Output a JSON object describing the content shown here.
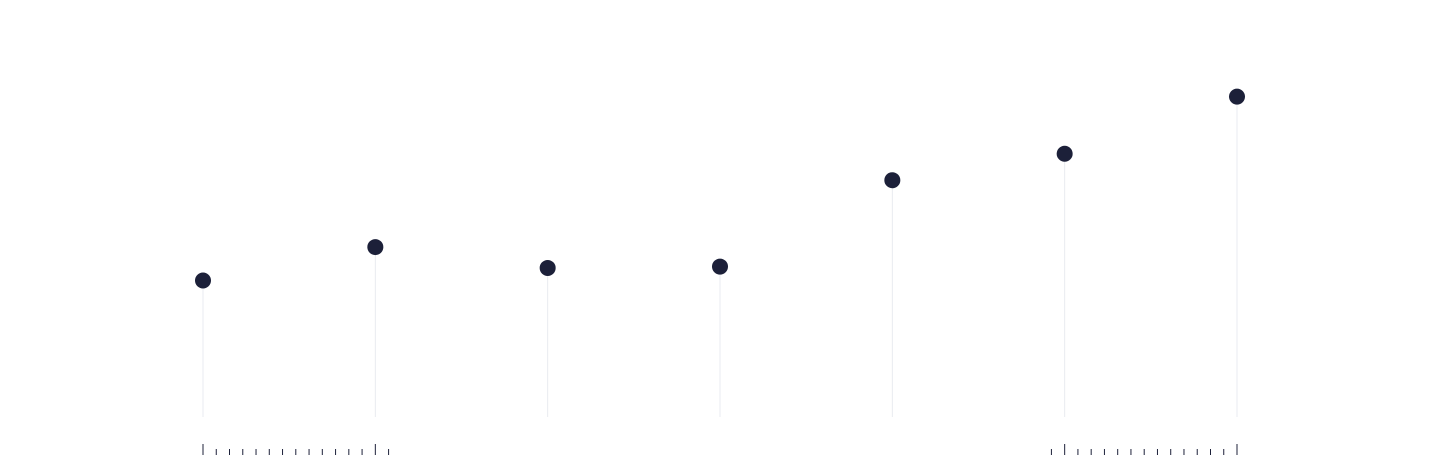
{
  "chart_data": {
    "type": "scatter",
    "style": "lollipop",
    "x": [
      1,
      2,
      3,
      4,
      5,
      6,
      7
    ],
    "values": [
      4.9,
      6.1,
      5.35,
      5.4,
      8.5,
      9.45,
      11.5
    ],
    "ylim": [
      0,
      14
    ],
    "title": "",
    "xlabel": "",
    "ylabel": "",
    "grid": false,
    "legend": "none",
    "colors": {
      "marker": "#1c2039",
      "stem": "#e9ebf0",
      "tick": "#1c2039",
      "background": "#ffffff"
    }
  }
}
